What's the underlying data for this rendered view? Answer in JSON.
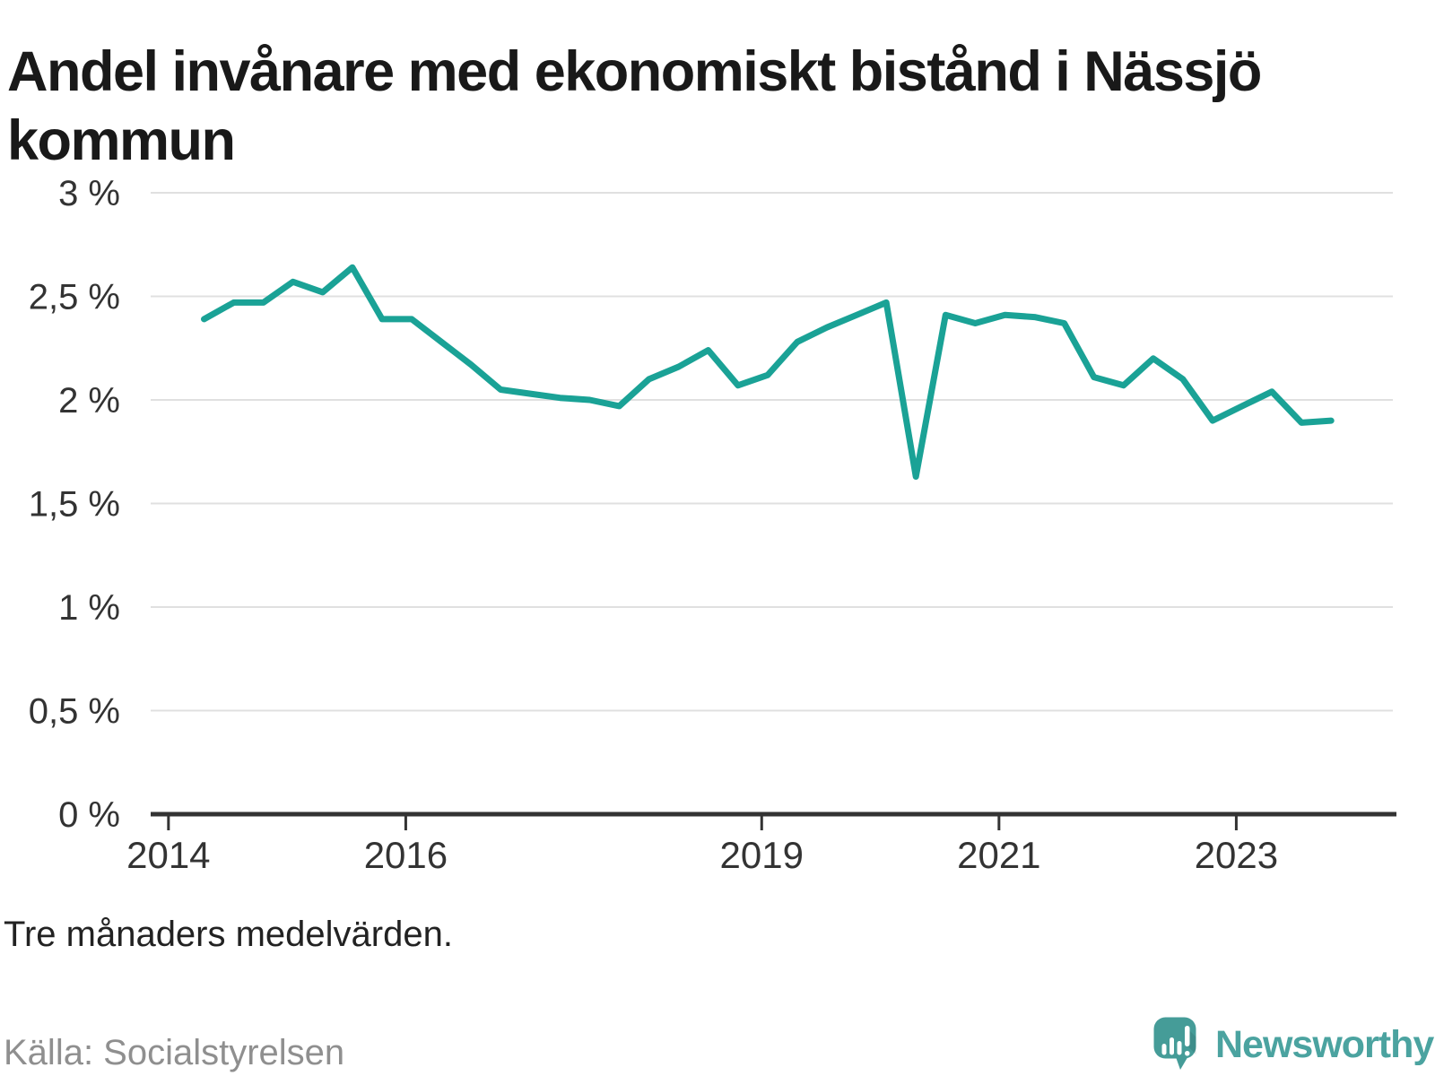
{
  "title": "Andel invånare med ekonomiskt bistånd i Nässjö kommun",
  "footnote": "Tre månaders medelvärden.",
  "source": "Källa: Socialstyrelsen",
  "brand": {
    "name": "Newsworthy",
    "icon": "newsworthy-speech-bubble-bar-chart-icon",
    "wordmark_color": "#4ba3a0",
    "bubble_color": "#459c98"
  },
  "colors": {
    "line": "#1aa296",
    "grid": "#e0e0e0",
    "axis": "#333333",
    "tick_label": "#333333",
    "title": "#191919",
    "footnote": "#222222",
    "source": "#8f8f8f"
  },
  "chart_data": {
    "type": "line",
    "title": "Andel invånare med ekonomiskt bistånd i Nässjö kommun",
    "xlabel": "",
    "ylabel": "%",
    "legend": "none",
    "grid": "horizontal",
    "ylim": [
      0,
      3
    ],
    "xlim_years": [
      2013.85,
      2024.35
    ],
    "line_color": "#1aa296",
    "x": [
      2014.3,
      2014.55,
      2014.8,
      2015.05,
      2015.3,
      2015.55,
      2015.8,
      2016.05,
      2016.3,
      2016.55,
      2016.8,
      2017.05,
      2017.3,
      2017.55,
      2017.8,
      2018.05,
      2018.3,
      2018.55,
      2018.8,
      2019.05,
      2019.3,
      2019.55,
      2019.8,
      2020.05,
      2020.3,
      2020.55,
      2020.8,
      2021.05,
      2021.3,
      2021.55,
      2021.8,
      2022.05,
      2022.3,
      2022.55,
      2022.8,
      2023.05,
      2023.3,
      2023.55,
      2023.8
    ],
    "values": [
      2.39,
      2.47,
      2.47,
      2.57,
      2.52,
      2.64,
      2.39,
      2.39,
      2.28,
      2.17,
      2.05,
      2.03,
      2.01,
      2.0,
      1.97,
      2.1,
      2.16,
      2.24,
      2.07,
      2.12,
      2.28,
      2.35,
      2.41,
      2.47,
      1.63,
      2.41,
      2.37,
      2.41,
      2.4,
      2.37,
      2.11,
      2.07,
      2.2,
      2.1,
      1.9,
      1.97,
      2.04,
      1.89,
      1.9
    ],
    "y_ticks": [
      {
        "label": "0 %",
        "value": 0
      },
      {
        "label": "0,5 %",
        "value": 0.5
      },
      {
        "label": "1 %",
        "value": 1
      },
      {
        "label": "1,5 %",
        "value": 1.5
      },
      {
        "label": "2 %",
        "value": 2
      },
      {
        "label": "2,5 %",
        "value": 2.5
      },
      {
        "label": "3 %",
        "value": 3
      }
    ],
    "x_ticks": [
      {
        "label": "2014",
        "year": 2014
      },
      {
        "label": "2016",
        "year": 2016
      },
      {
        "label": "2019",
        "year": 2019
      },
      {
        "label": "2021",
        "year": 2021
      },
      {
        "label": "2023",
        "year": 2023
      }
    ]
  }
}
